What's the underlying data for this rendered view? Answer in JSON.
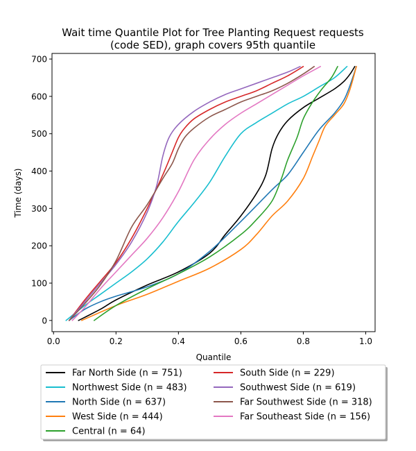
{
  "chart_data": {
    "type": "line",
    "title_lines": [
      "Wait time Quantile Plot for Tree Planting Request  requests",
      "(code SED), graph covers 95th quantile"
    ],
    "xlabel": "Quantile",
    "ylabel": "Time (days)",
    "xlim": [
      -0.005,
      1.03
    ],
    "ylim": [
      -30,
      715
    ],
    "xticks": [
      0.0,
      0.2,
      0.4,
      0.6,
      0.8,
      1.0
    ],
    "xtick_labels": [
      "0.0",
      "0.2",
      "0.4",
      "0.6",
      "0.8",
      "1.0"
    ],
    "yticks": [
      0,
      100,
      200,
      300,
      400,
      500,
      600,
      700
    ],
    "ytick_labels": [
      "0",
      "100",
      "200",
      "300",
      "400",
      "500",
      "600",
      "700"
    ],
    "grid": false,
    "legend_position": "below the plot, two columns",
    "series": [
      {
        "name": "Far North Side (n = 751)",
        "color": "#000000",
        "x": [
          0.08,
          0.15,
          0.2,
          0.3,
          0.4,
          0.5,
          0.55,
          0.6,
          0.65,
          0.68,
          0.7,
          0.72,
          0.75,
          0.8,
          0.85,
          0.9,
          0.93,
          0.95,
          0.965
        ],
        "y": [
          0,
          30,
          55,
          95,
          130,
          180,
          230,
          280,
          340,
          390,
          460,
          500,
          535,
          570,
          595,
          620,
          640,
          660,
          680
        ]
      },
      {
        "name": "Northwest Side (n = 483)",
        "color": "#17becf",
        "x": [
          0.04,
          0.1,
          0.15,
          0.2,
          0.25,
          0.3,
          0.35,
          0.4,
          0.45,
          0.5,
          0.55,
          0.6,
          0.65,
          0.7,
          0.75,
          0.8,
          0.85,
          0.9,
          0.94
        ],
        "y": [
          0,
          40,
          70,
          100,
          130,
          165,
          210,
          265,
          315,
          370,
          440,
          500,
          530,
          555,
          580,
          600,
          625,
          650,
          680
        ]
      },
      {
        "name": "North Side (n = 637)",
        "color": "#1f77b4",
        "x": [
          0.05,
          0.1,
          0.15,
          0.2,
          0.3,
          0.4,
          0.5,
          0.6,
          0.7,
          0.75,
          0.8,
          0.85,
          0.9,
          0.93,
          0.95,
          0.97
        ],
        "y": [
          0,
          30,
          50,
          65,
          90,
          125,
          185,
          265,
          350,
          390,
          450,
          510,
          555,
          590,
          630,
          680
        ]
      },
      {
        "name": "West Side (n = 444)",
        "color": "#ff7f0e",
        "x": [
          0.09,
          0.2,
          0.3,
          0.4,
          0.5,
          0.6,
          0.65,
          0.7,
          0.75,
          0.8,
          0.83,
          0.85,
          0.87,
          0.9,
          0.93,
          0.95,
          0.97
        ],
        "y": [
          0,
          40,
          70,
          105,
          140,
          190,
          230,
          280,
          320,
          380,
          440,
          480,
          520,
          550,
          580,
          620,
          680
        ]
      },
      {
        "name": "Central (n = 64)",
        "color": "#2ca02c",
        "x": [
          0.13,
          0.2,
          0.3,
          0.4,
          0.5,
          0.6,
          0.65,
          0.7,
          0.73,
          0.75,
          0.78,
          0.8,
          0.83,
          0.86,
          0.89,
          0.91
        ],
        "y": [
          0,
          40,
          85,
          125,
          170,
          230,
          270,
          320,
          380,
          430,
          490,
          540,
          585,
          620,
          650,
          680
        ]
      },
      {
        "name": "South Side (n = 229)",
        "color": "#d62728",
        "x": [
          0.05,
          0.1,
          0.15,
          0.2,
          0.25,
          0.3,
          0.35,
          0.38,
          0.4,
          0.42,
          0.45,
          0.5,
          0.55,
          0.6,
          0.65,
          0.7,
          0.75,
          0.8
        ],
        "y": [
          0,
          55,
          105,
          155,
          220,
          300,
          390,
          450,
          490,
          515,
          540,
          565,
          585,
          600,
          615,
          635,
          655,
          680
        ]
      },
      {
        "name": "Southwest Side (n = 619)",
        "color": "#9467bd",
        "x": [
          0.05,
          0.1,
          0.15,
          0.2,
          0.25,
          0.3,
          0.33,
          0.35,
          0.37,
          0.4,
          0.45,
          0.5,
          0.55,
          0.6,
          0.65,
          0.7,
          0.75,
          0.79
        ],
        "y": [
          0,
          50,
          100,
          150,
          210,
          290,
          360,
          440,
          490,
          525,
          560,
          585,
          605,
          620,
          635,
          650,
          665,
          680
        ]
      },
      {
        "name": "Far Southwest Side (n = 318)",
        "color": "#8c564b",
        "x": [
          0.05,
          0.1,
          0.15,
          0.2,
          0.25,
          0.3,
          0.35,
          0.38,
          0.4,
          0.42,
          0.45,
          0.5,
          0.55,
          0.6,
          0.65,
          0.7,
          0.75,
          0.8,
          0.835
        ],
        "y": [
          0,
          45,
          95,
          160,
          250,
          310,
          380,
          420,
          460,
          490,
          515,
          545,
          565,
          585,
          600,
          615,
          635,
          660,
          680
        ]
      },
      {
        "name": "Far Southeast Side (n = 156)",
        "color": "#e377c2",
        "x": [
          0.06,
          0.1,
          0.15,
          0.2,
          0.25,
          0.3,
          0.35,
          0.4,
          0.45,
          0.5,
          0.55,
          0.6,
          0.65,
          0.7,
          0.75,
          0.8,
          0.855
        ],
        "y": [
          0,
          35,
          85,
          130,
          175,
          220,
          275,
          345,
          430,
          485,
          525,
          555,
          580,
          605,
          630,
          655,
          680
        ]
      }
    ]
  }
}
